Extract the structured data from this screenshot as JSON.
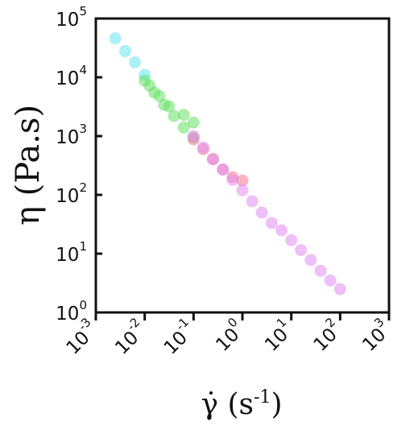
{
  "chart_data": {
    "type": "scatter",
    "xscale": "log",
    "yscale": "log",
    "xlim": [
      0.001,
      1000
    ],
    "ylim": [
      1,
      100000
    ],
    "xlabel": {
      "symbol": "γ̇",
      "open": " (s",
      "exp": "-1",
      "close": ")"
    },
    "ylabel": "η (Pa.s)",
    "x_ticks": [
      {
        "base": "10",
        "exp": "-3"
      },
      {
        "base": "10",
        "exp": "-2"
      },
      {
        "base": "10",
        "exp": "-1"
      },
      {
        "base": "10",
        "exp": "0"
      },
      {
        "base": "10",
        "exp": "1"
      },
      {
        "base": "10",
        "exp": "2"
      },
      {
        "base": "10",
        "exp": "3"
      }
    ],
    "y_ticks": [
      {
        "base": "10",
        "exp": "0"
      },
      {
        "base": "10",
        "exp": "1"
      },
      {
        "base": "10",
        "exp": "2"
      },
      {
        "base": "10",
        "exp": "3"
      },
      {
        "base": "10",
        "exp": "4"
      },
      {
        "base": "10",
        "exp": "5"
      }
    ],
    "grid": false,
    "legend": "none",
    "series": [
      {
        "color": "#66e6f0",
        "points": [
          [
            0.0025,
            46000
          ],
          [
            0.004,
            28000
          ],
          [
            0.0063,
            18000
          ],
          [
            0.01,
            11000
          ]
        ]
      },
      {
        "color": "#66e066",
        "points": [
          [
            0.01,
            8800
          ],
          [
            0.0126,
            7200
          ],
          [
            0.0158,
            5500
          ],
          [
            0.02,
            4800
          ],
          [
            0.025,
            3400
          ],
          [
            0.0316,
            3200
          ],
          [
            0.0398,
            2200
          ],
          [
            0.0631,
            2300
          ],
          [
            0.0631,
            1400
          ],
          [
            0.1,
            1700
          ],
          [
            0.1,
            950
          ]
        ]
      },
      {
        "color": "#f07890",
        "points": [
          [
            0.1,
            880
          ],
          [
            0.158,
            600
          ],
          [
            0.25,
            410
          ],
          [
            0.398,
            270
          ],
          [
            0.631,
            200
          ],
          [
            1.0,
            175
          ]
        ]
      },
      {
        "color": "#e28cf0",
        "points": [
          [
            0.1,
            1000
          ],
          [
            0.158,
            640
          ],
          [
            0.25,
            400
          ],
          [
            0.398,
            270
          ],
          [
            0.631,
            180
          ],
          [
            1.0,
            120
          ],
          [
            1.58,
            78
          ],
          [
            2.51,
            50
          ],
          [
            3.98,
            33
          ],
          [
            6.31,
            25
          ],
          [
            10,
            17
          ],
          [
            15.8,
            11.5
          ],
          [
            25.1,
            7.8
          ],
          [
            39.8,
            5.1
          ],
          [
            63.1,
            3.5
          ],
          [
            100,
            2.5
          ]
        ]
      }
    ]
  }
}
